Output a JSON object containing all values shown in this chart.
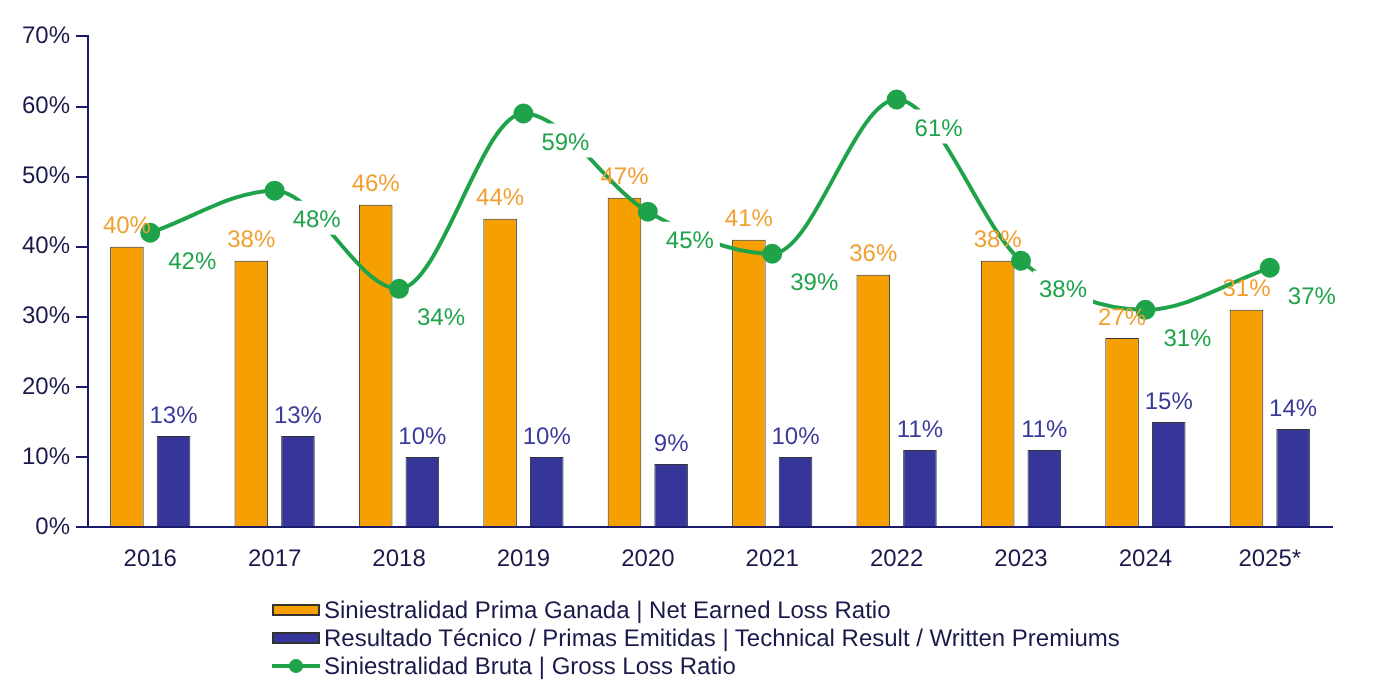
{
  "chart_data": {
    "type": "bar",
    "categories": [
      "2016",
      "2017",
      "2018",
      "2019",
      "2020",
      "2021",
      "2022",
      "2023",
      "2024",
      "2025*"
    ],
    "series": [
      {
        "name": "Siniestralidad Prima Ganada | Net Earned Loss Ratio",
        "color": "#f5a000",
        "values": [
          40,
          38,
          46,
          44,
          47,
          41,
          36,
          38,
          27,
          31
        ],
        "value_labels": [
          "40%",
          "38%",
          "46%",
          "44%",
          "47%",
          "41%",
          "36%",
          "38%",
          "27%",
          "31%"
        ]
      },
      {
        "name": "Resultado Técnico / Primas Emitidas | Technical Result / Written Premiums",
        "color": "#35359a",
        "values": [
          13,
          13,
          10,
          10,
          9,
          10,
          11,
          11,
          15,
          14
        ],
        "value_labels": [
          "13%",
          "13%",
          "10%",
          "10%",
          "9%",
          "10%",
          "11%",
          "11%",
          "15%",
          "14%"
        ]
      },
      {
        "name": "Siniestralidad Bruta | Gross Loss Ratio",
        "type": "line",
        "color": "#1fa34a",
        "marker": "circle",
        "values": [
          42,
          48,
          34,
          59,
          45,
          39,
          61,
          38,
          31,
          37
        ],
        "value_labels": [
          "42%",
          "48%",
          "34%",
          "59%",
          "45%",
          "39%",
          "61%",
          "38%",
          "31%",
          "37%"
        ]
      }
    ],
    "ylim": [
      0,
      70
    ],
    "yticks": [
      {
        "value": 0,
        "label": "0%"
      },
      {
        "value": 10,
        "label": "10%"
      },
      {
        "value": 20,
        "label": "20%"
      },
      {
        "value": 30,
        "label": "30%"
      },
      {
        "value": 40,
        "label": "40%"
      },
      {
        "value": 50,
        "label": "50%"
      },
      {
        "value": 60,
        "label": "60%"
      },
      {
        "value": 70,
        "label": "70%"
      }
    ],
    "grid": false,
    "legend": "bottom"
  }
}
